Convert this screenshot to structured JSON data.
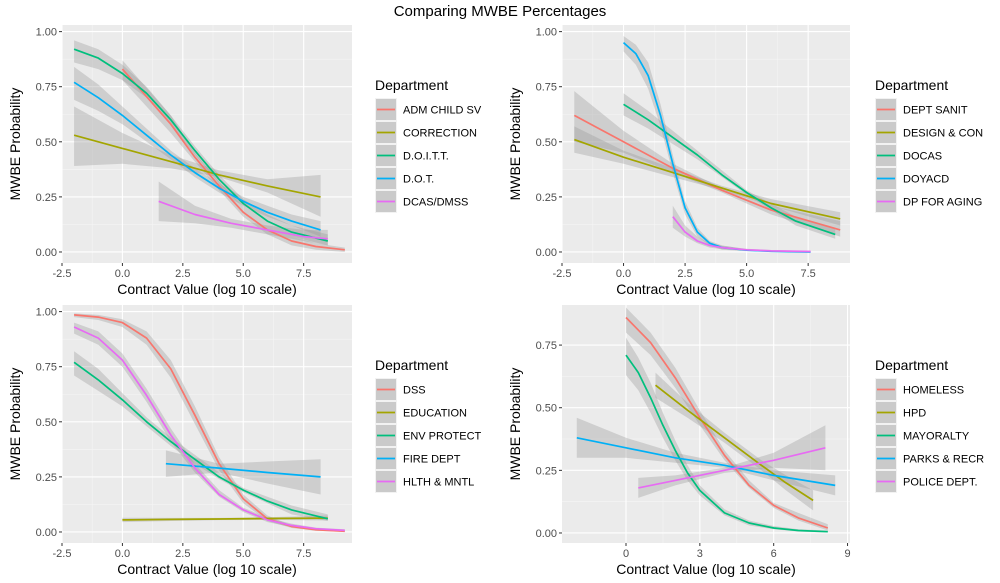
{
  "figure": {
    "title": "Comparing MWBE Percentages"
  },
  "chart_data": [
    {
      "type": "line",
      "xlabel": "Contract Value (log 10 scale)",
      "ylabel": "MWBE Probability",
      "xlim": [
        -2.5,
        9.5
      ],
      "ylim": [
        -0.05,
        1.03
      ],
      "xticks": [
        -2.5,
        0,
        2.5,
        5,
        7.5
      ],
      "xtick_labels": [
        "-2.5",
        "0.0",
        "2.5",
        "5.0",
        "7.5"
      ],
      "yticks": [
        0,
        0.25,
        0.5,
        0.75,
        1
      ],
      "ytick_labels": [
        "0.00",
        "0.25",
        "0.50",
        "0.75",
        "1.00"
      ],
      "grid": true,
      "legend": {
        "title": "Department",
        "position": "right"
      },
      "series": [
        {
          "name": "ADM CHILD SV",
          "color": "#F8766D",
          "x": [
            0,
            2,
            3,
            4,
            5,
            6,
            7,
            8,
            9.2
          ],
          "y": [
            0.83,
            0.58,
            0.43,
            0.3,
            0.18,
            0.1,
            0.05,
            0.025,
            0.01
          ],
          "lower": [
            0.78,
            0.54,
            0.41,
            0.28,
            0.16,
            0.08,
            0.03,
            0.01,
            0.0
          ],
          "upper": [
            0.87,
            0.62,
            0.45,
            0.32,
            0.2,
            0.12,
            0.07,
            0.04,
            0.02
          ]
        },
        {
          "name": "CORRECTION",
          "color": "#A3A500",
          "x": [
            -2,
            0,
            2,
            4,
            6,
            8.2
          ],
          "y": [
            0.53,
            0.47,
            0.41,
            0.35,
            0.3,
            0.25
          ],
          "lower": [
            0.39,
            0.4,
            0.38,
            0.34,
            0.27,
            0.16
          ],
          "upper": [
            0.66,
            0.54,
            0.44,
            0.37,
            0.33,
            0.35
          ]
        },
        {
          "name": "D.O.I.T.T.",
          "color": "#00BF7D",
          "x": [
            -2,
            -1,
            0,
            1,
            2,
            3,
            4,
            5,
            6,
            7,
            8.5
          ],
          "y": [
            0.92,
            0.88,
            0.81,
            0.72,
            0.6,
            0.46,
            0.33,
            0.22,
            0.14,
            0.09,
            0.05
          ],
          "lower": [
            0.86,
            0.83,
            0.78,
            0.7,
            0.58,
            0.44,
            0.31,
            0.2,
            0.12,
            0.07,
            0.03
          ],
          "upper": [
            0.96,
            0.92,
            0.85,
            0.75,
            0.62,
            0.48,
            0.35,
            0.24,
            0.17,
            0.12,
            0.08
          ]
        },
        {
          "name": "D.O.T.",
          "color": "#00B0F6",
          "x": [
            -2,
            -1,
            0,
            1,
            2,
            3,
            4,
            5,
            6,
            7,
            8.2
          ],
          "y": [
            0.77,
            0.7,
            0.62,
            0.53,
            0.44,
            0.36,
            0.29,
            0.23,
            0.18,
            0.14,
            0.1
          ],
          "lower": [
            0.69,
            0.64,
            0.58,
            0.5,
            0.42,
            0.34,
            0.27,
            0.21,
            0.16,
            0.12,
            0.07
          ],
          "upper": [
            0.84,
            0.76,
            0.66,
            0.56,
            0.46,
            0.38,
            0.31,
            0.25,
            0.21,
            0.17,
            0.14
          ]
        },
        {
          "name": "DCAS/DMSS",
          "color": "#E76BF3",
          "x": [
            1.5,
            3,
            4.5,
            6,
            7.5,
            8.5
          ],
          "y": [
            0.23,
            0.17,
            0.13,
            0.1,
            0.07,
            0.06
          ],
          "lower": [
            0.14,
            0.13,
            0.11,
            0.08,
            0.05,
            0.03
          ],
          "upper": [
            0.32,
            0.21,
            0.15,
            0.12,
            0.1,
            0.1
          ]
        }
      ]
    },
    {
      "type": "line",
      "xlabel": "Contract Value (log 10 scale)",
      "ylabel": "MWBE Probability",
      "xlim": [
        -2.5,
        9.2
      ],
      "ylim": [
        -0.05,
        1.03
      ],
      "xticks": [
        -2.5,
        0,
        2.5,
        5,
        7.5
      ],
      "xtick_labels": [
        "-2.5",
        "0.0",
        "2.5",
        "5.0",
        "7.5"
      ],
      "yticks": [
        0,
        0.25,
        0.5,
        0.75,
        1
      ],
      "ytick_labels": [
        "0.00",
        "0.25",
        "0.50",
        "0.75",
        "1.00"
      ],
      "grid": true,
      "legend": {
        "title": "Department",
        "position": "right"
      },
      "series": [
        {
          "name": "DEPT SANIT",
          "color": "#F8766D",
          "x": [
            -2,
            0,
            2,
            4,
            6,
            8.8
          ],
          "y": [
            0.62,
            0.5,
            0.38,
            0.28,
            0.19,
            0.1
          ],
          "lower": [
            0.5,
            0.45,
            0.36,
            0.27,
            0.17,
            0.07
          ],
          "upper": [
            0.73,
            0.55,
            0.4,
            0.29,
            0.21,
            0.14
          ]
        },
        {
          "name": "DESIGN & CON",
          "color": "#A3A500",
          "x": [
            -2,
            0,
            2,
            4,
            6,
            8.8
          ],
          "y": [
            0.51,
            0.43,
            0.36,
            0.29,
            0.22,
            0.15
          ],
          "lower": [
            0.45,
            0.4,
            0.34,
            0.28,
            0.21,
            0.12
          ],
          "upper": [
            0.57,
            0.46,
            0.38,
            0.3,
            0.24,
            0.18
          ]
        },
        {
          "name": "DOCAS",
          "color": "#00BF7D",
          "x": [
            0,
            1,
            2,
            3,
            4,
            5,
            6,
            7,
            8.6
          ],
          "y": [
            0.67,
            0.6,
            0.52,
            0.44,
            0.35,
            0.27,
            0.2,
            0.14,
            0.08
          ],
          "lower": [
            0.62,
            0.56,
            0.49,
            0.42,
            0.34,
            0.26,
            0.19,
            0.12,
            0.06
          ],
          "upper": [
            0.72,
            0.64,
            0.55,
            0.46,
            0.37,
            0.28,
            0.22,
            0.16,
            0.11
          ]
        },
        {
          "name": "DOYACD",
          "color": "#00B0F6",
          "x": [
            0,
            0.5,
            1,
            1.5,
            2,
            2.5,
            3,
            3.5,
            4,
            5,
            6,
            7.6
          ],
          "y": [
            0.95,
            0.9,
            0.8,
            0.62,
            0.4,
            0.2,
            0.09,
            0.04,
            0.02,
            0.008,
            0.003,
            0.0
          ],
          "lower": [
            0.91,
            0.85,
            0.74,
            0.57,
            0.36,
            0.17,
            0.07,
            0.03,
            0.01,
            0.004,
            0.001,
            0.0
          ],
          "upper": [
            0.98,
            0.94,
            0.86,
            0.67,
            0.44,
            0.23,
            0.11,
            0.05,
            0.03,
            0.012,
            0.006,
            0.002
          ]
        },
        {
          "name": "DP FOR AGING",
          "color": "#E76BF3",
          "x": [
            2,
            2.5,
            3,
            3.5,
            4,
            5,
            6,
            7.6
          ],
          "y": [
            0.16,
            0.09,
            0.05,
            0.03,
            0.02,
            0.01,
            0.005,
            0.002
          ],
          "lower": [
            0.11,
            0.07,
            0.04,
            0.02,
            0.012,
            0.006,
            0.002,
            0.0
          ],
          "upper": [
            0.21,
            0.12,
            0.07,
            0.04,
            0.028,
            0.015,
            0.009,
            0.005
          ]
        }
      ]
    },
    {
      "type": "line",
      "xlabel": "Contract Value (log 10 scale)",
      "ylabel": "MWBE Probability",
      "xlim": [
        -2.5,
        9.5
      ],
      "ylim": [
        -0.05,
        1.03
      ],
      "xticks": [
        -2.5,
        0,
        2.5,
        5,
        7.5
      ],
      "xtick_labels": [
        "-2.5",
        "0.0",
        "2.5",
        "5.0",
        "7.5"
      ],
      "yticks": [
        0,
        0.25,
        0.5,
        0.75,
        1
      ],
      "ytick_labels": [
        "0.00",
        "0.25",
        "0.50",
        "0.75",
        "1.00"
      ],
      "grid": true,
      "legend": {
        "title": "Department",
        "position": "right"
      },
      "series": [
        {
          "name": "DSS",
          "color": "#F8766D",
          "x": [
            -2,
            -1,
            0,
            1,
            2,
            3,
            4,
            5,
            6,
            7,
            8,
            9.2
          ],
          "y": [
            0.985,
            0.975,
            0.95,
            0.88,
            0.74,
            0.53,
            0.31,
            0.15,
            0.06,
            0.025,
            0.01,
            0.003
          ],
          "lower": [
            0.975,
            0.962,
            0.93,
            0.85,
            0.7,
            0.49,
            0.28,
            0.13,
            0.05,
            0.018,
            0.006,
            0.001
          ],
          "upper": [
            0.992,
            0.985,
            0.965,
            0.91,
            0.78,
            0.57,
            0.34,
            0.17,
            0.075,
            0.03,
            0.014,
            0.006
          ]
        },
        {
          "name": "EDUCATION",
          "color": "#A3A500",
          "x": [
            0,
            2,
            4,
            6,
            8.5
          ],
          "y": [
            0.055,
            0.057,
            0.059,
            0.061,
            0.063
          ],
          "lower": [
            0.045,
            0.05,
            0.054,
            0.055,
            0.052
          ],
          "upper": [
            0.065,
            0.064,
            0.064,
            0.067,
            0.075
          ]
        },
        {
          "name": "ENV PROTECT",
          "color": "#00BF7D",
          "x": [
            -2,
            -1,
            0,
            1,
            2,
            3,
            4,
            5,
            6,
            7,
            8.5
          ],
          "y": [
            0.77,
            0.69,
            0.6,
            0.5,
            0.41,
            0.33,
            0.25,
            0.19,
            0.14,
            0.1,
            0.06
          ],
          "lower": [
            0.71,
            0.64,
            0.57,
            0.48,
            0.39,
            0.31,
            0.24,
            0.18,
            0.13,
            0.08,
            0.05
          ],
          "upper": [
            0.82,
            0.74,
            0.63,
            0.52,
            0.43,
            0.35,
            0.27,
            0.2,
            0.16,
            0.12,
            0.08
          ]
        },
        {
          "name": "FIRE DEPT",
          "color": "#00B0F6",
          "x": [
            1.8,
            4,
            6,
            8.2
          ],
          "y": [
            0.31,
            0.29,
            0.27,
            0.25
          ],
          "lower": [
            0.25,
            0.27,
            0.22,
            0.17
          ],
          "upper": [
            0.37,
            0.31,
            0.32,
            0.33
          ]
        },
        {
          "name": "HLTH & MNTL",
          "color": "#E76BF3",
          "x": [
            -2,
            -1,
            0,
            1,
            2,
            3,
            4,
            5,
            6,
            7,
            8,
            9.2
          ],
          "y": [
            0.93,
            0.88,
            0.78,
            0.62,
            0.44,
            0.29,
            0.17,
            0.1,
            0.055,
            0.03,
            0.015,
            0.007
          ],
          "lower": [
            0.9,
            0.85,
            0.75,
            0.59,
            0.41,
            0.27,
            0.16,
            0.09,
            0.045,
            0.022,
            0.01,
            0.004
          ],
          "upper": [
            0.95,
            0.91,
            0.81,
            0.65,
            0.47,
            0.31,
            0.19,
            0.11,
            0.065,
            0.038,
            0.02,
            0.012
          ]
        }
      ]
    },
    {
      "type": "line",
      "xlabel": "Contract Value (log 10 scale)",
      "ylabel": "MWBE Probability",
      "xlim": [
        -2.6,
        9.1
      ],
      "ylim": [
        -0.04,
        0.91
      ],
      "xticks": [
        0,
        3,
        6,
        9
      ],
      "xtick_labels": [
        "0",
        "3",
        "6",
        "9"
      ],
      "yticks": [
        0,
        0.25,
        0.5,
        0.75
      ],
      "ytick_labels": [
        "0.00",
        "0.25",
        "0.50",
        "0.75"
      ],
      "grid": true,
      "legend": {
        "title": "Department",
        "position": "right"
      },
      "series": [
        {
          "name": "HOMELESS",
          "color": "#F8766D",
          "x": [
            0,
            1,
            2,
            3,
            4,
            5,
            6,
            7,
            8.2
          ],
          "y": [
            0.86,
            0.76,
            0.62,
            0.46,
            0.31,
            0.19,
            0.11,
            0.06,
            0.02
          ],
          "lower": [
            0.8,
            0.71,
            0.58,
            0.43,
            0.29,
            0.18,
            0.1,
            0.05,
            0.01
          ],
          "upper": [
            0.9,
            0.8,
            0.66,
            0.49,
            0.33,
            0.21,
            0.12,
            0.08,
            0.035
          ]
        },
        {
          "name": "HPD",
          "color": "#A3A500",
          "x": [
            1.2,
            2.5,
            4,
            5.5,
            6.5,
            7.6
          ],
          "y": [
            0.59,
            0.49,
            0.38,
            0.27,
            0.2,
            0.13
          ],
          "lower": [
            0.54,
            0.46,
            0.36,
            0.25,
            0.17,
            0.09
          ],
          "upper": [
            0.64,
            0.52,
            0.4,
            0.29,
            0.23,
            0.17
          ]
        },
        {
          "name": "MAYORALTY",
          "color": "#00BF7D",
          "x": [
            0,
            0.5,
            1,
            1.5,
            2,
            2.5,
            3,
            4,
            5,
            6,
            7,
            8.2
          ],
          "y": [
            0.71,
            0.64,
            0.54,
            0.43,
            0.33,
            0.24,
            0.17,
            0.08,
            0.04,
            0.02,
            0.01,
            0.005
          ],
          "lower": [
            0.63,
            0.57,
            0.48,
            0.38,
            0.29,
            0.21,
            0.15,
            0.07,
            0.03,
            0.015,
            0.006,
            0.002
          ],
          "upper": [
            0.78,
            0.7,
            0.6,
            0.48,
            0.37,
            0.27,
            0.19,
            0.095,
            0.05,
            0.028,
            0.015,
            0.01
          ]
        },
        {
          "name": "PARKS & RECR",
          "color": "#00B0F6",
          "x": [
            -2,
            0,
            2,
            4,
            6,
            8.5
          ],
          "y": [
            0.38,
            0.34,
            0.3,
            0.27,
            0.23,
            0.19
          ],
          "lower": [
            0.3,
            0.3,
            0.28,
            0.26,
            0.21,
            0.15
          ],
          "upper": [
            0.46,
            0.38,
            0.32,
            0.28,
            0.25,
            0.23
          ]
        },
        {
          "name": "POLICE DEPT.",
          "color": "#E76BF3",
          "x": [
            0.5,
            2,
            4,
            6,
            8.1
          ],
          "y": [
            0.18,
            0.21,
            0.25,
            0.29,
            0.34
          ],
          "lower": [
            0.14,
            0.19,
            0.24,
            0.26,
            0.25
          ],
          "upper": [
            0.22,
            0.23,
            0.26,
            0.32,
            0.43
          ]
        }
      ]
    }
  ]
}
